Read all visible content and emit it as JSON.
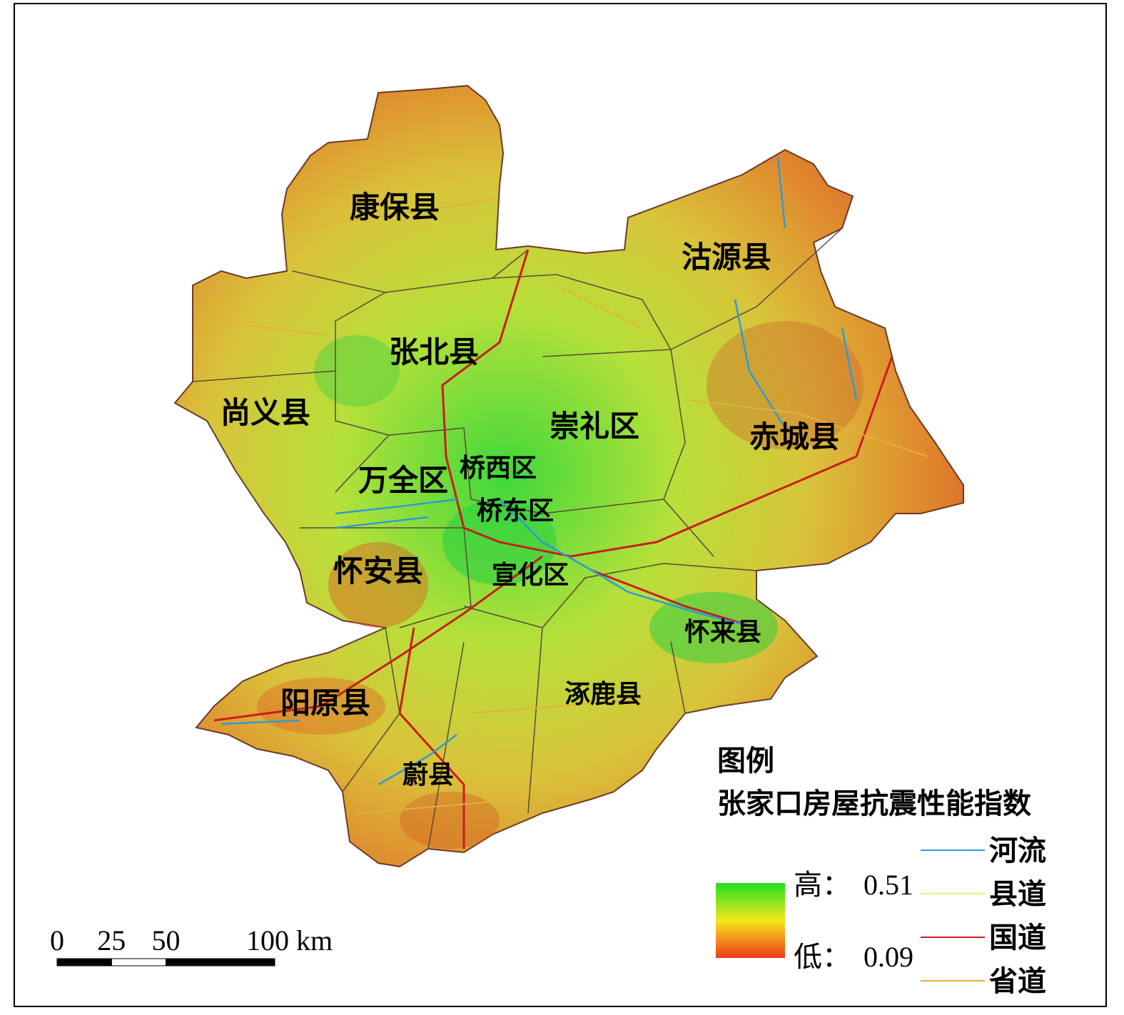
{
  "districts": [
    "康保县",
    "沽源县",
    "张北县",
    "尚义县",
    "崇礼区",
    "赤城县",
    "万全区",
    "桥西区",
    "桥东区",
    "怀安县",
    "宣化区",
    "怀来县",
    "阳原县",
    "涿鹿县",
    "蔚县"
  ],
  "legend": {
    "title": "图例",
    "subtitle": "张家口房屋抗震性能指数",
    "high": {
      "label": "高：",
      "value": 0.51,
      "color": "#22e022"
    },
    "low": {
      "label": "低：",
      "value": 0.09,
      "color": "#f03a1a"
    },
    "lines": [
      {
        "name": "河流",
        "color": "#2e9bd6"
      },
      {
        "name": "县道",
        "color": "#f4f07a"
      },
      {
        "name": "国道",
        "color": "#c81e1e"
      },
      {
        "name": "省道",
        "color": "#e2b23a"
      }
    ]
  },
  "scale_bar": {
    "ticks": [
      0,
      25,
      50,
      100
    ],
    "unit": "km"
  }
}
